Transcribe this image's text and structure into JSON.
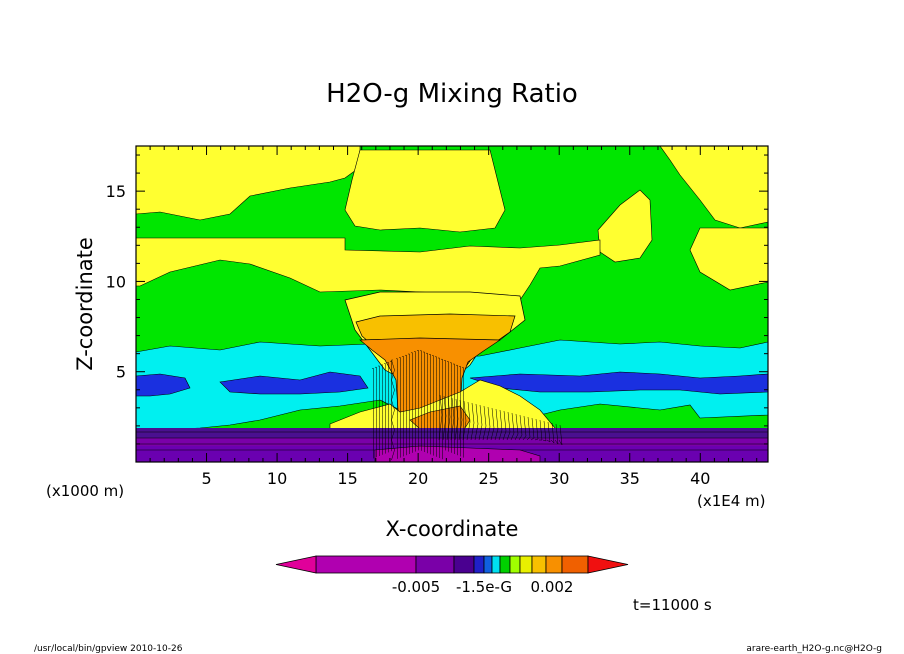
{
  "chart_data": {
    "type": "contour",
    "title": "H2O-g Mixing Ratio",
    "xlabel": "X-coordinate",
    "ylabel": "Z-coordinate",
    "x_unit_left": "(x1000 m)",
    "x_unit_right": "(x1E4 m)",
    "xlim": [
      0,
      44.8
    ],
    "ylim": [
      0,
      17.5
    ],
    "x_ticks": [
      5,
      10,
      15,
      20,
      25,
      30,
      35,
      40
    ],
    "x_tick_labels": [
      "5",
      "10",
      "15",
      "20",
      "25",
      "30",
      "35",
      "40"
    ],
    "y_ticks": [
      5,
      10,
      15
    ],
    "y_tick_labels": [
      "5",
      "10",
      "15"
    ],
    "grid": false,
    "colorbar": {
      "colors": [
        "#b000b0",
        "#7a00a8",
        "#4a0090",
        "#2020c8",
        "#1060e0",
        "#00e0f0",
        "#00d000",
        "#a0ff00",
        "#e8f000",
        "#f8c000",
        "#f89000",
        "#f06000"
      ],
      "low_arrow_color": "#e0009a",
      "high_arrow_color": "#f01010",
      "labels": [
        "-0.005",
        "-1.5e-G",
        "0.002"
      ]
    },
    "bands": [
      {
        "color": "#00e600",
        "zmin": 0,
        "zmax": 17.5
      },
      {
        "color": "#ffff30",
        "zmin": 14,
        "zmax": 17.5
      },
      {
        "color": "#ffff30",
        "zmin": 8.5,
        "zmax": 12.5
      },
      {
        "color": "#00f0f0",
        "zmin": 3,
        "zmax": 6
      },
      {
        "color": "#1a30e0",
        "zmin": 4.3,
        "zmax": 5
      },
      {
        "color": "#4a1090",
        "zmin": 1.6,
        "zmax": 0.3
      },
      {
        "color": "#6a00b0",
        "zmin": 0,
        "zmax": 1.2
      }
    ]
  },
  "footer": {
    "time_label": "t=11000 s",
    "left_path": "/usr/local/bin/gpview  2010-10-26",
    "right_source": "arare-earth_H2O-g.nc@H2O-g"
  }
}
